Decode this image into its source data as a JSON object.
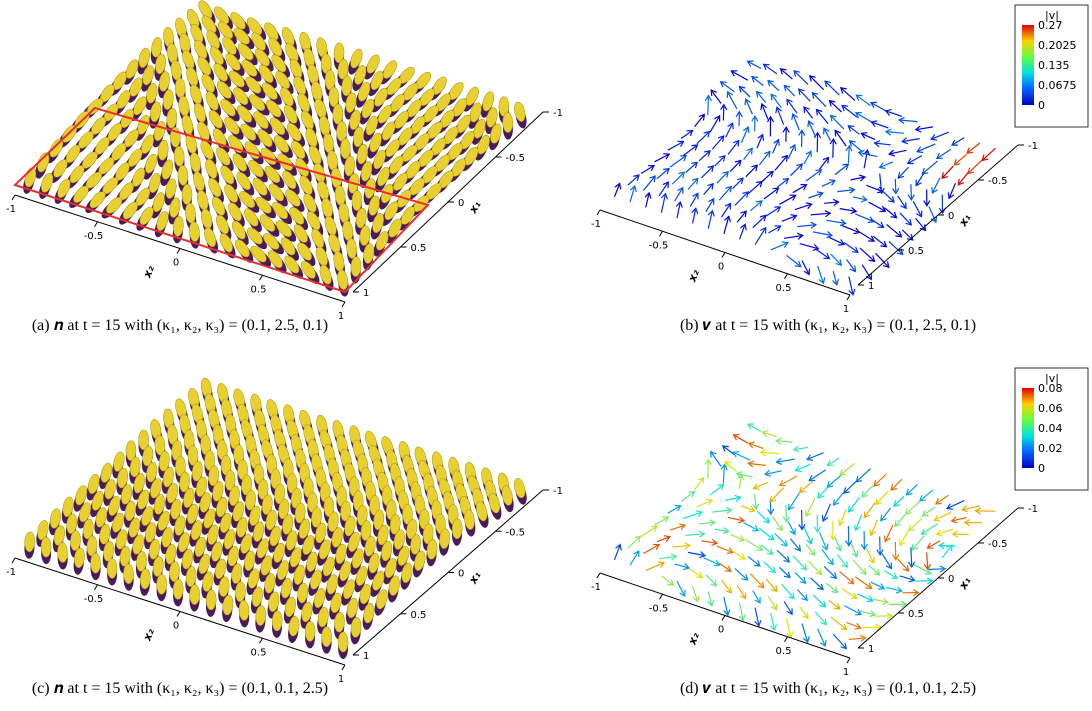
{
  "panels": [
    {
      "caption": "(a) 𝒏 at t = 15 with (κ₁, κ₂, κ₃) = (0.1, 2.5, 0.1)",
      "x2_axis": {
        "title": "x₂",
        "ticks": [
          "-1",
          "-0.5",
          "0",
          "0.5",
          "1"
        ]
      },
      "x1_axis": {
        "title": "x₁",
        "ticks": [
          "1",
          "0.5",
          "0",
          "-0.5",
          "-1"
        ]
      }
    },
    {
      "caption": "(b) 𝒗 at t = 15 with (κ₁, κ₂, κ₃) = (0.1, 2.5, 0.1)",
      "x2_axis": {
        "title": "x₂",
        "ticks": [
          "-1",
          "-0.5",
          "0",
          "0.5",
          "1"
        ]
      },
      "x1_axis": {
        "title": "x₁",
        "ticks": [
          "1",
          "0.5",
          "0",
          "-0.5",
          "-1"
        ]
      },
      "colorbar": {
        "title": "|v|",
        "labels": [
          "0.27",
          "0.2025",
          "0.135",
          "0.0675",
          "0"
        ]
      }
    },
    {
      "caption": "(c) 𝒏 at t = 15 with (κ₁, κ₂, κ₃) = (0.1, 0.1, 2.5)",
      "x2_axis": {
        "title": "x₂",
        "ticks": [
          "-1",
          "-0.5",
          "0",
          "0.5",
          "1"
        ]
      },
      "x1_axis": {
        "title": "x₁",
        "ticks": [
          "1",
          "0.5",
          "0",
          "-0.5",
          "-1"
        ]
      }
    },
    {
      "caption": "(d) 𝒗 at t = 15 with (κ₁, κ₂, κ₃) = (0.1, 0.1, 2.5)",
      "x2_axis": {
        "title": "x₂",
        "ticks": [
          "-1",
          "-0.5",
          "0",
          "0.5",
          "1"
        ]
      },
      "x1_axis": {
        "title": "x₁",
        "ticks": [
          "1",
          "0.5",
          "0",
          "-0.5",
          "-1"
        ]
      },
      "colorbar": {
        "title": "|v|",
        "labels": [
          "0.08",
          "0.06",
          "0.04",
          "0.02",
          "0"
        ]
      }
    }
  ]
}
